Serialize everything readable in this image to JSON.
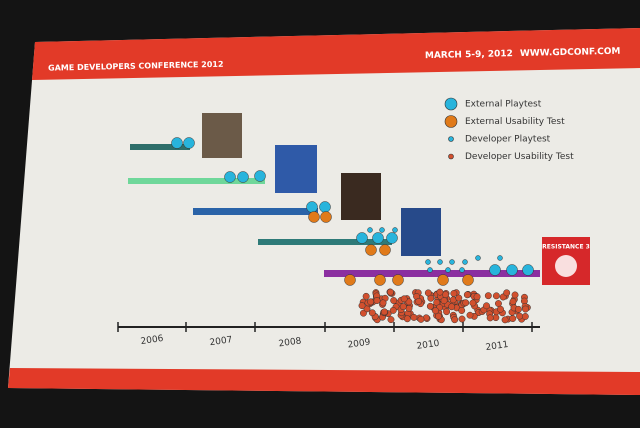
{
  "header": {
    "event": "GAME DEVELOPERS CONFERENCE 2012",
    "dates": "MARCH 5-9, 2012",
    "site": "WWW.GDCONF.COM"
  },
  "legend": [
    "External Playtest",
    "External Usability Test",
    "Developer Playtest",
    "Developer Usability Test"
  ],
  "timeline": {
    "years": [
      "2006",
      "2007",
      "2008",
      "2009",
      "2010",
      "2011"
    ]
  },
  "badge": {
    "label": "RESISTANCE 3"
  }
}
